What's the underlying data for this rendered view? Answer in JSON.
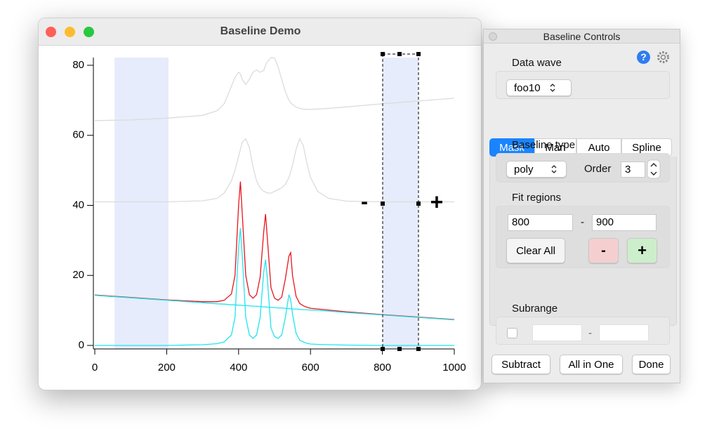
{
  "window": {
    "title": "Baseline Demo"
  },
  "chart_data": {
    "type": "line",
    "x": [
      0,
      100,
      200,
      300,
      340,
      360,
      380,
      390,
      400,
      405,
      410,
      420,
      430,
      440,
      450,
      460,
      470,
      475,
      480,
      490,
      500,
      510,
      520,
      530,
      540,
      545,
      550,
      560,
      570,
      580,
      590,
      600,
      620,
      650,
      700,
      800,
      900,
      1000
    ],
    "xlim": [
      0,
      1000
    ],
    "xticks": [
      0,
      200,
      400,
      600,
      800,
      1000
    ],
    "ylim": [
      -1,
      82.2
    ],
    "yticks": [
      0,
      20,
      40,
      60,
      80
    ],
    "fit_regions": [
      [
        55,
        205
      ],
      [
        800,
        900
      ]
    ],
    "region_color": "#e6ecfb",
    "series": [
      {
        "color": "#dcdcdc",
        "values": [
          64.2,
          64.4,
          64.9,
          65.7,
          67,
          69,
          74,
          76.5,
          78,
          77.5,
          76,
          74.5,
          76,
          78,
          78.7,
          78,
          78.5,
          80,
          81,
          82.2,
          82.1,
          79.5,
          76,
          72.5,
          70,
          69.3,
          68.8,
          68,
          67.7,
          67.5,
          67.4,
          67.4,
          67.5,
          67.7,
          68.1,
          69,
          69.8,
          70.6
        ]
      },
      {
        "color": "#dcdcdc",
        "values": [
          41,
          41,
          41,
          41.3,
          42,
          43.5,
          47,
          50,
          54,
          56,
          58,
          59,
          56.5,
          51,
          47,
          45,
          44,
          43.8,
          43.5,
          43.5,
          44,
          44.5,
          45,
          46,
          48,
          49.5,
          51.5,
          56,
          59,
          57,
          52,
          48,
          44,
          42,
          41.2,
          41,
          41,
          41
        ]
      },
      {
        "color": "#e8141c",
        "values": [
          14.4,
          13.7,
          13,
          12.5,
          12.5,
          12.9,
          14.7,
          20,
          40,
          46.8,
          38,
          20,
          14.5,
          13.5,
          14.5,
          19.5,
          32.5,
          37.5,
          30.5,
          16.5,
          13.5,
          12.9,
          13.8,
          19,
          25.5,
          26.5,
          20,
          14,
          12,
          11.3,
          10.9,
          10.6,
          10.4,
          10.1,
          9.6,
          8.8,
          8.1,
          7.4
        ]
      },
      {
        "color": "#22e4ee",
        "values": [
          14.3,
          13.6,
          12.9,
          12.2,
          11.9,
          11.8,
          11.6,
          11.6,
          11.5,
          11.5,
          11.4,
          11.4,
          11.3,
          11.2,
          11.2,
          11.1,
          11,
          11,
          10.9,
          10.9,
          10.8,
          10.7,
          10.7,
          10.6,
          10.5,
          10.5,
          10.4,
          10.4,
          10.3,
          10.2,
          10.2,
          10.1,
          10,
          9.8,
          9.4,
          8.7,
          8,
          7.3
        ]
      },
      {
        "color": "#22e4ee",
        "values": [
          0,
          0,
          0,
          0.2,
          0.5,
          1,
          3,
          8,
          28,
          33.5,
          26,
          8,
          3,
          2,
          3,
          8,
          21,
          24.5,
          19,
          5,
          2.5,
          2,
          3,
          8,
          14.5,
          13,
          9,
          3.5,
          1.5,
          1,
          0.6,
          0.4,
          0.3,
          0.2,
          0.1,
          0,
          0,
          0
        ]
      }
    ]
  },
  "plot_markers": {
    "minus": "-",
    "plus": "+"
  },
  "controls": {
    "title": "Baseline Controls",
    "help": "?",
    "data_wave": {
      "label": "Data wave",
      "value": "foo10"
    },
    "tabs": [
      "Mask",
      "Man",
      "Auto",
      "Spline"
    ],
    "baseline_type": {
      "label": "Baseline type",
      "value": "poly",
      "order_label": "Order",
      "order": "3"
    },
    "fit_regions": {
      "label": "Fit regions",
      "from": "800",
      "separator": "-",
      "to": "900",
      "clear": "Clear All",
      "remove": "-",
      "add": "+"
    },
    "subrange": {
      "label": "Subrange",
      "separator": "-"
    },
    "buttons": [
      "Subtract",
      "All in One",
      "Done"
    ]
  }
}
